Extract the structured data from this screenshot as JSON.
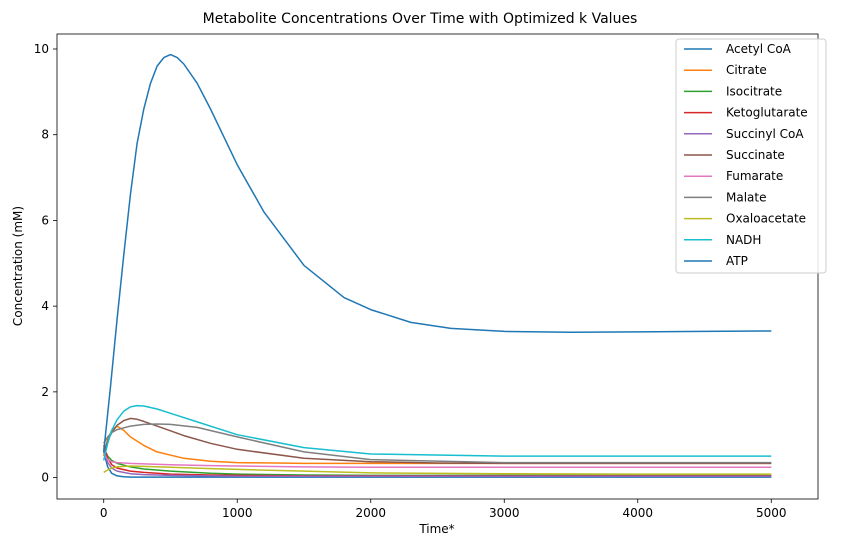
{
  "chart_data": {
    "type": "line",
    "title": "Metabolite Concentrations Over Time with Optimized k Values",
    "xlabel": "Time*",
    "ylabel": "Concentration (mM)",
    "xlim": [
      -350,
      5350
    ],
    "ylim": [
      -0.5,
      10.35
    ],
    "xticks": [
      0,
      1000,
      2000,
      3000,
      4000,
      5000
    ],
    "yticks": [
      0,
      2,
      4,
      6,
      8,
      10
    ],
    "grid": false,
    "legend_position": "top-right",
    "series": [
      {
        "name": "Acetyl CoA",
        "color": "#1f77b4",
        "x": [
          0,
          30,
          60,
          100,
          150,
          200,
          250,
          300,
          400,
          500,
          600,
          800,
          1000,
          1500,
          2000,
          3000,
          4000,
          5000
        ],
        "y": [
          0.6,
          0.25,
          0.1,
          0.04,
          0.02,
          0.01,
          0.01,
          0.01,
          0.01,
          0.01,
          0.01,
          0.01,
          0.01,
          0.01,
          0.01,
          0.01,
          0.01,
          0.01
        ]
      },
      {
        "name": "Citrate",
        "color": "#ff7f0e",
        "x": [
          0,
          30,
          60,
          100,
          150,
          200,
          300,
          400,
          600,
          800,
          1000,
          1500,
          2000,
          3000,
          4000,
          5000
        ],
        "y": [
          0.5,
          0.9,
          1.1,
          1.2,
          1.1,
          0.95,
          0.75,
          0.6,
          0.45,
          0.38,
          0.35,
          0.33,
          0.33,
          0.33,
          0.33,
          0.33
        ]
      },
      {
        "name": "Isocitrate",
        "color": "#2ca02c",
        "x": [
          0,
          30,
          60,
          100,
          200,
          300,
          500,
          800,
          1000,
          1500,
          2000,
          3000,
          4000,
          5000
        ],
        "y": [
          0.7,
          0.5,
          0.4,
          0.33,
          0.25,
          0.2,
          0.15,
          0.1,
          0.08,
          0.06,
          0.05,
          0.05,
          0.05,
          0.05
        ]
      },
      {
        "name": "Ketoglutarate",
        "color": "#d62728",
        "x": [
          0,
          30,
          60,
          100,
          200,
          300,
          500,
          800,
          1000,
          1500,
          2000,
          3000,
          4000,
          5000
        ],
        "y": [
          0.75,
          0.45,
          0.3,
          0.22,
          0.15,
          0.12,
          0.08,
          0.06,
          0.05,
          0.04,
          0.04,
          0.04,
          0.04,
          0.04
        ]
      },
      {
        "name": "Succinyl CoA",
        "color": "#9467bd",
        "x": [
          0,
          30,
          60,
          100,
          200,
          300,
          500,
          800,
          1000,
          1500,
          2000,
          3000,
          4000,
          5000
        ],
        "y": [
          0.65,
          0.35,
          0.22,
          0.15,
          0.09,
          0.07,
          0.05,
          0.04,
          0.03,
          0.03,
          0.03,
          0.03,
          0.03,
          0.03
        ]
      },
      {
        "name": "Succinate",
        "color": "#8c564b",
        "x": [
          0,
          30,
          60,
          100,
          150,
          200,
          250,
          300,
          400,
          600,
          800,
          1000,
          1500,
          2000,
          2500,
          3000,
          4000,
          5000
        ],
        "y": [
          0.6,
          0.85,
          1.05,
          1.22,
          1.33,
          1.38,
          1.36,
          1.31,
          1.2,
          0.98,
          0.8,
          0.66,
          0.45,
          0.37,
          0.34,
          0.33,
          0.33,
          0.33
        ]
      },
      {
        "name": "Fumarate",
        "color": "#e377c2",
        "x": [
          0,
          30,
          60,
          100,
          200,
          300,
          500,
          800,
          1000,
          1500,
          2000,
          3000,
          4000,
          5000
        ],
        "y": [
          0.55,
          0.42,
          0.37,
          0.35,
          0.33,
          0.32,
          0.3,
          0.28,
          0.27,
          0.25,
          0.24,
          0.24,
          0.24,
          0.24
        ]
      },
      {
        "name": "Malate",
        "color": "#7f7f7f",
        "x": [
          0,
          30,
          60,
          100,
          200,
          300,
          400,
          500,
          700,
          1000,
          1500,
          2000,
          3000,
          4000,
          5000
        ],
        "y": [
          0.8,
          0.95,
          1.05,
          1.12,
          1.2,
          1.24,
          1.25,
          1.24,
          1.17,
          0.95,
          0.6,
          0.42,
          0.35,
          0.35,
          0.35
        ]
      },
      {
        "name": "Oxaloacetate",
        "color": "#bcbd22",
        "x": [
          0,
          30,
          60,
          100,
          200,
          300,
          500,
          800,
          1000,
          1500,
          2000,
          3000,
          4000,
          5000
        ],
        "y": [
          0.12,
          0.18,
          0.22,
          0.25,
          0.27,
          0.26,
          0.24,
          0.21,
          0.19,
          0.15,
          0.11,
          0.09,
          0.08,
          0.08
        ]
      },
      {
        "name": "NADH",
        "color": "#17becf",
        "x": [
          0,
          30,
          60,
          100,
          150,
          200,
          250,
          300,
          400,
          500,
          700,
          1000,
          1500,
          2000,
          3000,
          4000,
          5000
        ],
        "y": [
          0.4,
          0.8,
          1.1,
          1.35,
          1.55,
          1.65,
          1.68,
          1.67,
          1.6,
          1.5,
          1.3,
          1.0,
          0.7,
          0.55,
          0.5,
          0.5,
          0.5
        ]
      },
      {
        "name": "ATP",
        "color": "#1f77b4",
        "x": [
          0,
          50,
          100,
          150,
          200,
          250,
          300,
          350,
          400,
          450,
          500,
          550,
          600,
          700,
          800,
          1000,
          1200,
          1500,
          1800,
          2000,
          2300,
          2600,
          3000,
          3500,
          4000,
          4500,
          5000
        ],
        "y": [
          0.6,
          2.1,
          3.7,
          5.2,
          6.6,
          7.8,
          8.6,
          9.2,
          9.6,
          9.8,
          9.87,
          9.8,
          9.65,
          9.2,
          8.6,
          7.3,
          6.2,
          4.95,
          4.2,
          3.92,
          3.62,
          3.48,
          3.41,
          3.39,
          3.4,
          3.41,
          3.42
        ]
      }
    ]
  }
}
